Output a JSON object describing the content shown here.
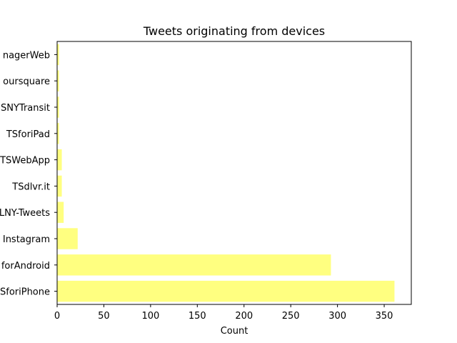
{
  "chart_data": {
    "type": "bar",
    "orientation": "horizontal",
    "title": "Tweets originating from devices",
    "xlabel": "Count",
    "ylabel": "",
    "categories": [
      "nagerWeb",
      "oursquare",
      "SNYTransit",
      "TSforiPad",
      "TSWebApp",
      "TSdlvr.it",
      "LNY-Tweets",
      "Instagram",
      "forAndroid",
      "SforiPhone"
    ],
    "values": [
      2,
      2,
      2,
      2,
      5,
      5,
      7,
      22,
      293,
      361
    ],
    "xlim": [
      0,
      379
    ],
    "xticks": [
      0,
      50,
      100,
      150,
      200,
      250,
      300,
      350
    ],
    "bar_color": "#ffff80",
    "grid": false,
    "legend": "none"
  }
}
